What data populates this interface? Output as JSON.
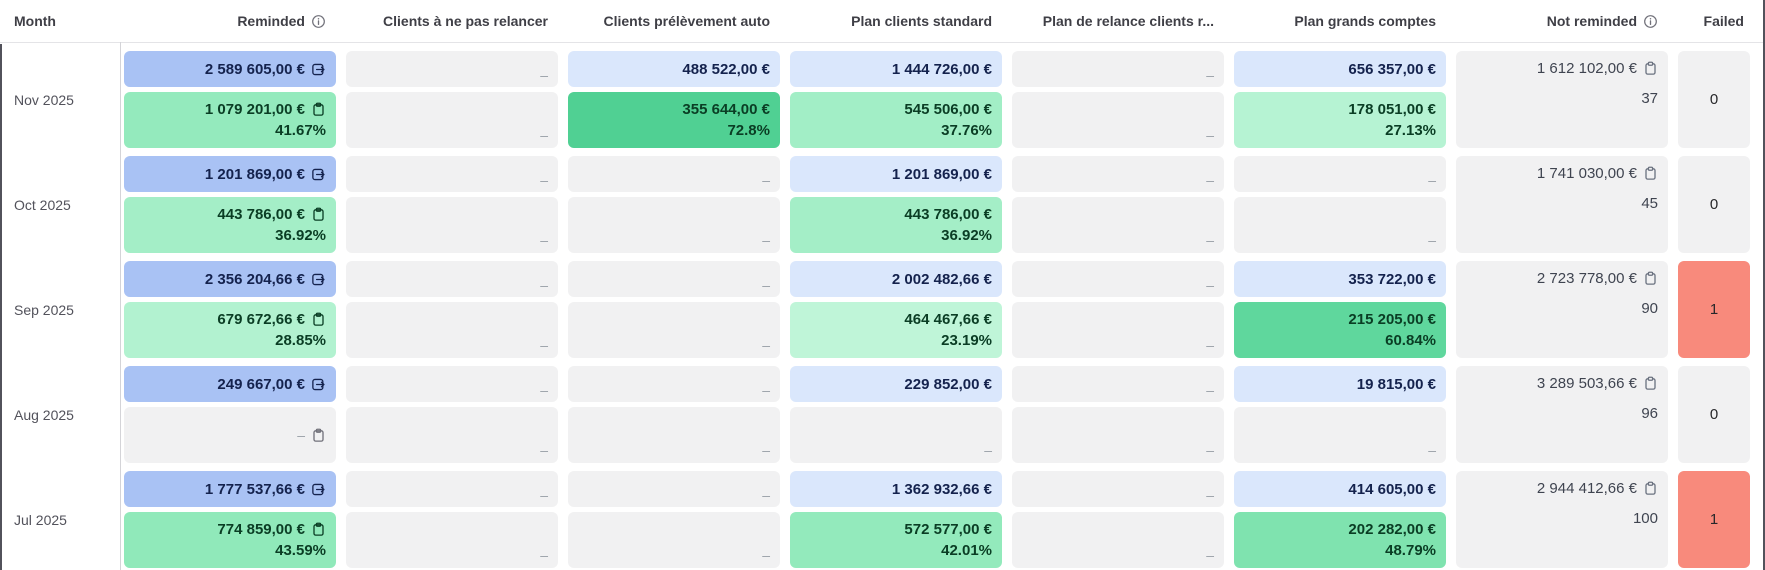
{
  "ui": {
    "dash": "–"
  },
  "colors": {
    "blue_strong": "#a9c2f4",
    "blue_light": "#dae7fc",
    "green_text": "#0a3d24",
    "navy_text": "#14224d",
    "gray_cell": "#f1f1f2",
    "red_cell": "#f88a7c"
  },
  "columns": [
    {
      "label": "Month"
    },
    {
      "label": "Reminded",
      "has_info": true
    },
    {
      "label": "Clients à ne pas relancer"
    },
    {
      "label": "Clients prélèvement auto"
    },
    {
      "label": "Plan clients standard"
    },
    {
      "label": "Plan de relance clients r..."
    },
    {
      "label": "Plan grands comptes"
    },
    {
      "label": "Not reminded",
      "has_info": true
    },
    {
      "label": "Failed"
    }
  ],
  "months": [
    {
      "label": "Nov 2025",
      "columns": [
        {
          "top": {
            "text": "2 589 605,00 €",
            "bg": "#a9c2f4",
            "fg": "#14224d",
            "icon": "export"
          },
          "bottom": {
            "text": "1 079 201,00 €",
            "pct": "41.67%",
            "bg": "#94eabd",
            "fg": "#0a3d24",
            "icon": "clipboard"
          }
        },
        {
          "top": {
            "dash": true
          },
          "bottom": {
            "dash": true
          }
        },
        {
          "top": {
            "text": "488 522,00 €",
            "bg": "#dae7fc",
            "fg": "#14224d"
          },
          "bottom": {
            "text": "355 644,00 €",
            "pct": "72.8%",
            "bg": "#50d093",
            "fg": "#0a3d24"
          }
        },
        {
          "top": {
            "text": "1 444 726,00 €",
            "bg": "#dae7fc",
            "fg": "#14224d"
          },
          "bottom": {
            "text": "545 506,00 €",
            "pct": "37.76%",
            "bg": "#a2eec6",
            "fg": "#0a3d24"
          }
        },
        {
          "top": {
            "dash": true
          },
          "bottom": {
            "dash": true
          }
        },
        {
          "top": {
            "text": "656 357,00 €",
            "bg": "#dae7fc",
            "fg": "#14224d"
          },
          "bottom": {
            "text": "178 051,00 €",
            "pct": "27.13%",
            "bg": "#b6f3d3",
            "fg": "#0a3d24"
          }
        }
      ],
      "not_reminded": {
        "amount": "1 612 102,00 €",
        "count": "37"
      },
      "failed": {
        "value": "0",
        "variant": "gray"
      }
    },
    {
      "label": "Oct 2025",
      "columns": [
        {
          "top": {
            "text": "1 201 869,00 €",
            "bg": "#a9c2f4",
            "fg": "#14224d",
            "icon": "export"
          },
          "bottom": {
            "text": "443 786,00 €",
            "pct": "36.92%",
            "bg": "#a4eec7",
            "fg": "#0a3d24",
            "icon": "clipboard"
          }
        },
        {
          "top": {
            "dash": true
          },
          "bottom": {
            "dash": true
          }
        },
        {
          "top": {
            "dash": true
          },
          "bottom": {
            "dash": true
          }
        },
        {
          "top": {
            "text": "1 201 869,00 €",
            "bg": "#dae7fc",
            "fg": "#14224d"
          },
          "bottom": {
            "text": "443 786,00 €",
            "pct": "36.92%",
            "bg": "#a4eec7",
            "fg": "#0a3d24"
          }
        },
        {
          "top": {
            "dash": true
          },
          "bottom": {
            "dash": true
          }
        },
        {
          "top": {
            "dash": true
          },
          "bottom": {
            "dash": true
          }
        }
      ],
      "not_reminded": {
        "amount": "1 741 030,00 €",
        "count": "45"
      },
      "failed": {
        "value": "0",
        "variant": "gray"
      }
    },
    {
      "label": "Sep 2025",
      "columns": [
        {
          "top": {
            "text": "2 356 204,66 €",
            "bg": "#a9c2f4",
            "fg": "#14224d",
            "icon": "export"
          },
          "bottom": {
            "text": "679 672,66 €",
            "pct": "28.85%",
            "bg": "#b2f2d0",
            "fg": "#0a3d24",
            "icon": "clipboard"
          }
        },
        {
          "top": {
            "dash": true
          },
          "bottom": {
            "dash": true
          }
        },
        {
          "top": {
            "dash": true
          },
          "bottom": {
            "dash": true
          }
        },
        {
          "top": {
            "text": "2 002 482,66 €",
            "bg": "#dae7fc",
            "fg": "#14224d"
          },
          "bottom": {
            "text": "464 467,66 €",
            "pct": "23.19%",
            "bg": "#bff5d8",
            "fg": "#0a3d24"
          }
        },
        {
          "top": {
            "dash": true
          },
          "bottom": {
            "dash": true
          }
        },
        {
          "top": {
            "text": "353 722,00 €",
            "bg": "#dae7fc",
            "fg": "#14224d"
          },
          "bottom": {
            "text": "215 205,00 €",
            "pct": "60.84%",
            "bg": "#5fd79d",
            "fg": "#0a3d24"
          }
        }
      ],
      "not_reminded": {
        "amount": "2 723 778,00 €",
        "count": "90"
      },
      "failed": {
        "value": "1",
        "variant": "red"
      }
    },
    {
      "label": "Aug 2025",
      "columns": [
        {
          "top": {
            "text": "249 667,00 €",
            "bg": "#a9c2f4",
            "fg": "#14224d",
            "icon": "export"
          },
          "bottom": {
            "dash": true,
            "icon": "clipboard"
          }
        },
        {
          "top": {
            "dash": true
          },
          "bottom": {
            "dash": true
          }
        },
        {
          "top": {
            "dash": true
          },
          "bottom": {
            "dash": true
          }
        },
        {
          "top": {
            "text": "229 852,00 €",
            "bg": "#dae7fc",
            "fg": "#14224d"
          },
          "bottom": {
            "dash": true
          }
        },
        {
          "top": {
            "dash": true
          },
          "bottom": {
            "dash": true
          }
        },
        {
          "top": {
            "text": "19 815,00 €",
            "bg": "#dae7fc",
            "fg": "#14224d"
          },
          "bottom": {
            "dash": true
          }
        }
      ],
      "not_reminded": {
        "amount": "3 289 503,66 €",
        "count": "96"
      },
      "failed": {
        "value": "0",
        "variant": "gray"
      }
    },
    {
      "label": "Jul 2025",
      "columns": [
        {
          "top": {
            "text": "1 777 537,66 €",
            "bg": "#a9c2f4",
            "fg": "#14224d",
            "icon": "export"
          },
          "bottom": {
            "text": "774 859,00 €",
            "pct": "43.59%",
            "bg": "#90e9ba",
            "fg": "#0a3d24",
            "icon": "clipboard"
          }
        },
        {
          "top": {
            "dash": true
          },
          "bottom": {
            "dash": true
          }
        },
        {
          "top": {
            "dash": true
          },
          "bottom": {
            "dash": true
          }
        },
        {
          "top": {
            "text": "1 362 932,66 €",
            "bg": "#dae7fc",
            "fg": "#14224d"
          },
          "bottom": {
            "text": "572 577,00 €",
            "pct": "42.01%",
            "bg": "#93eabc",
            "fg": "#0a3d24"
          }
        },
        {
          "top": {
            "dash": true
          },
          "bottom": {
            "dash": true
          }
        },
        {
          "top": {
            "text": "414 605,00 €",
            "bg": "#dae7fc",
            "fg": "#14224d"
          },
          "bottom": {
            "text": "202 282,00 €",
            "pct": "48.79%",
            "bg": "#7fe3af",
            "fg": "#0a3d24"
          }
        }
      ],
      "not_reminded": {
        "amount": "2 944 412,66 €",
        "count": "100"
      },
      "failed": {
        "value": "1",
        "variant": "red"
      }
    }
  ]
}
